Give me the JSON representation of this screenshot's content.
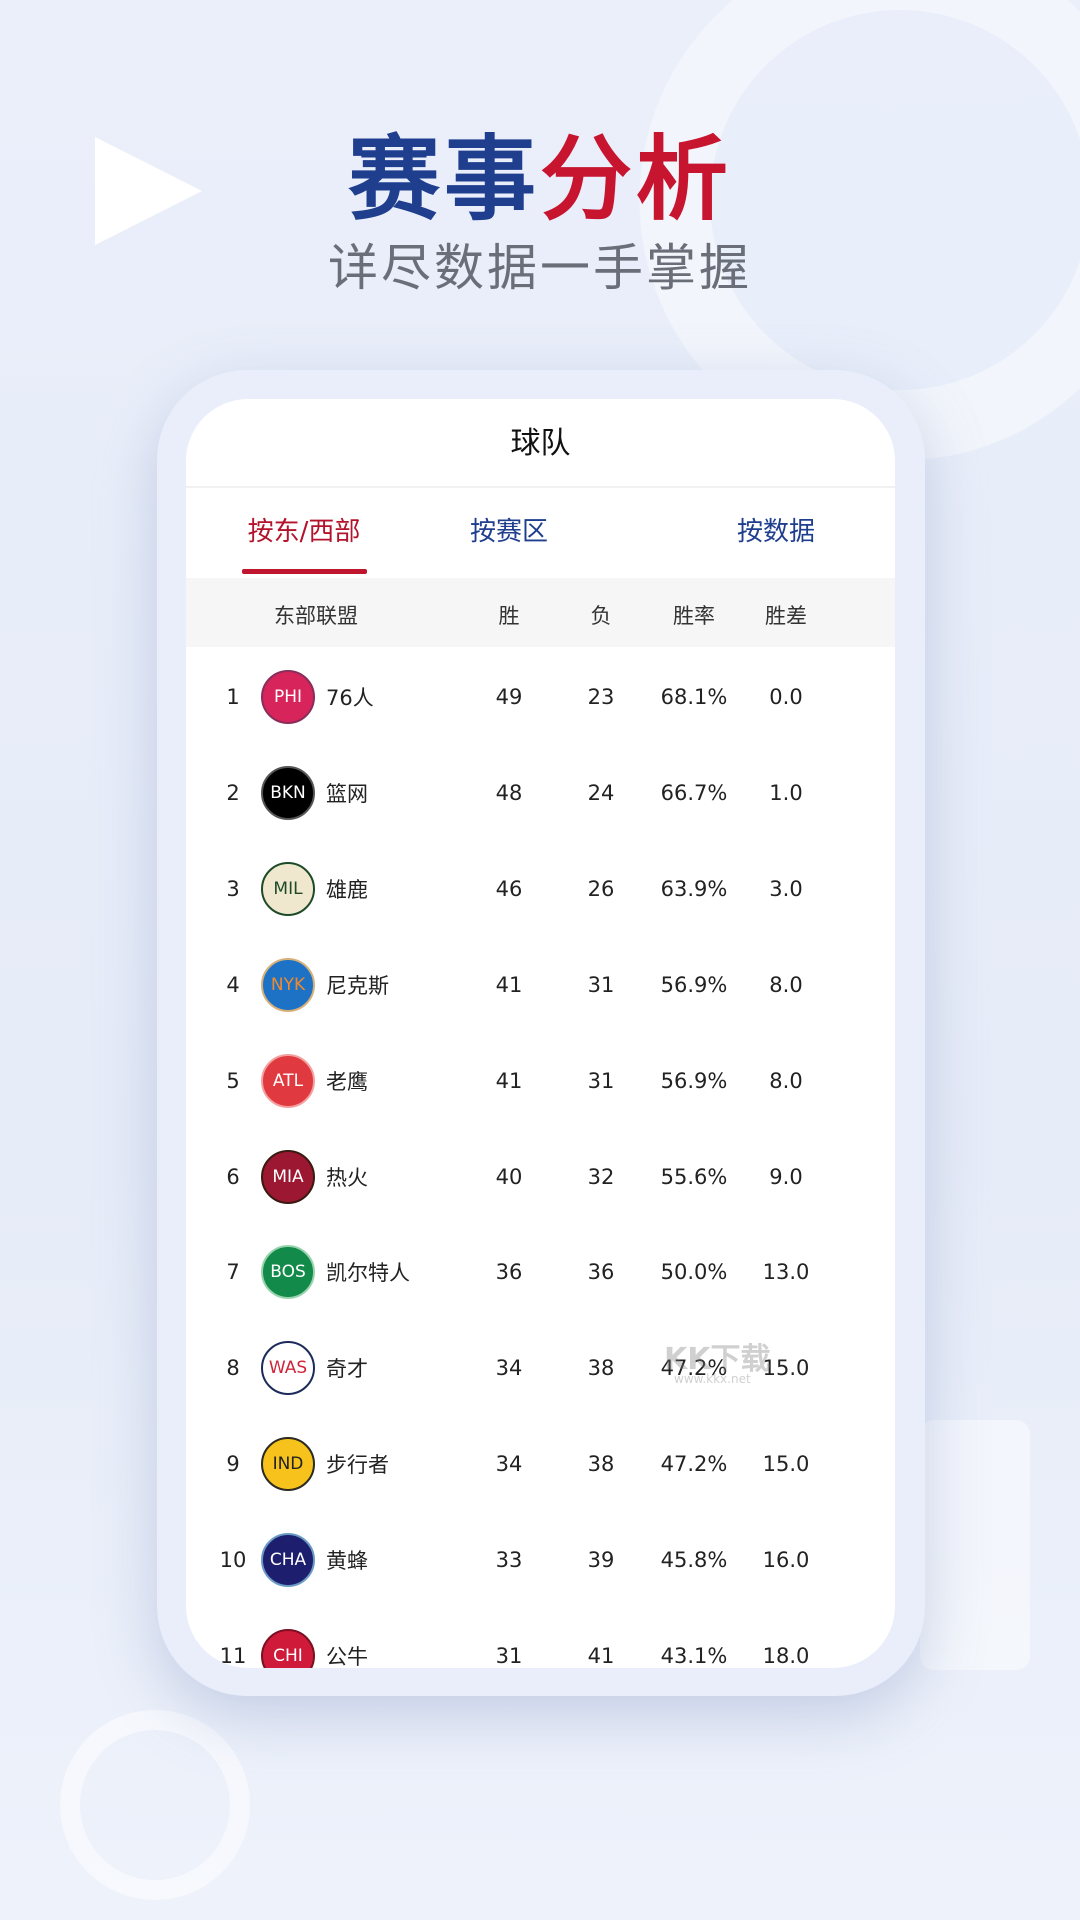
{
  "banner": {
    "title_part1": "赛事",
    "title_part2": "分析",
    "subtitle": "详尽数据一手掌握"
  },
  "colors": {
    "brand_blue": "#1f3f8e",
    "brand_red": "#c8152f"
  },
  "screen": {
    "header": "球队",
    "tabs": [
      {
        "label": "按东/西部",
        "active": true
      },
      {
        "label": "按赛区",
        "active": false
      },
      {
        "label": "按数据",
        "active": false
      }
    ],
    "table": {
      "columns": [
        "东部联盟",
        "胜",
        "负",
        "胜率",
        "胜差"
      ],
      "rows": [
        {
          "rank": "1",
          "abbr": "PHI",
          "name": "76人",
          "w": "49",
          "l": "23",
          "pct": "68.1%",
          "gb": "0.0",
          "bg": "#d7245a",
          "border": "#8a2d5a",
          "fg": "#ffffff"
        },
        {
          "rank": "2",
          "abbr": "BKN",
          "name": "篮网",
          "w": "48",
          "l": "24",
          "pct": "66.7%",
          "gb": "1.0",
          "bg": "#000000",
          "border": "#555555",
          "fg": "#ffffff"
        },
        {
          "rank": "3",
          "abbr": "MIL",
          "name": "雄鹿",
          "w": "46",
          "l": "26",
          "pct": "63.9%",
          "gb": "3.0",
          "bg": "#efe8cf",
          "border": "#1e4a28",
          "fg": "#1e4a28"
        },
        {
          "rank": "4",
          "abbr": "NYK",
          "name": "尼克斯",
          "w": "41",
          "l": "31",
          "pct": "56.9%",
          "gb": "8.0",
          "bg": "#1d72c6",
          "border": "#d7b07a",
          "fg": "#f08a2c"
        },
        {
          "rank": "5",
          "abbr": "ATL",
          "name": "老鹰",
          "w": "41",
          "l": "31",
          "pct": "56.9%",
          "gb": "8.0",
          "bg": "#e0393f",
          "border": "#f3a0a0",
          "fg": "#ffffff"
        },
        {
          "rank": "6",
          "abbr": "MIA",
          "name": "热火",
          "w": "40",
          "l": "32",
          "pct": "55.6%",
          "gb": "9.0",
          "bg": "#9c1832",
          "border": "#3a1a10",
          "fg": "#ffffff"
        },
        {
          "rank": "7",
          "abbr": "BOS",
          "name": "凯尔特人",
          "w": "36",
          "l": "36",
          "pct": "50.0%",
          "gb": "13.0",
          "bg": "#128a4a",
          "border": "#9ad3b0",
          "fg": "#ffffff"
        },
        {
          "rank": "8",
          "abbr": "WAS",
          "name": "奇才",
          "w": "34",
          "l": "38",
          "pct": "47.2%",
          "gb": "15.0",
          "bg": "#ffffff",
          "border": "#1b2a5a",
          "fg": "#d0243a"
        },
        {
          "rank": "9",
          "abbr": "IND",
          "name": "步行者",
          "w": "34",
          "l": "38",
          "pct": "47.2%",
          "gb": "15.0",
          "bg": "#f7c21c",
          "border": "#2a2a20",
          "fg": "#222222"
        },
        {
          "rank": "10",
          "abbr": "CHA",
          "name": "黄蜂",
          "w": "33",
          "l": "39",
          "pct": "45.8%",
          "gb": "16.0",
          "bg": "#1d1f6e",
          "border": "#6a9ac6",
          "fg": "#ffffff"
        },
        {
          "rank": "11",
          "abbr": "CHI",
          "name": "公牛",
          "w": "31",
          "l": "41",
          "pct": "43.1%",
          "gb": "18.0",
          "bg": "#cf1a3a",
          "border": "#7a1020",
          "fg": "#ffffff"
        }
      ]
    }
  },
  "watermark": {
    "text": "KK下载",
    "url": "www.kkx.net"
  }
}
